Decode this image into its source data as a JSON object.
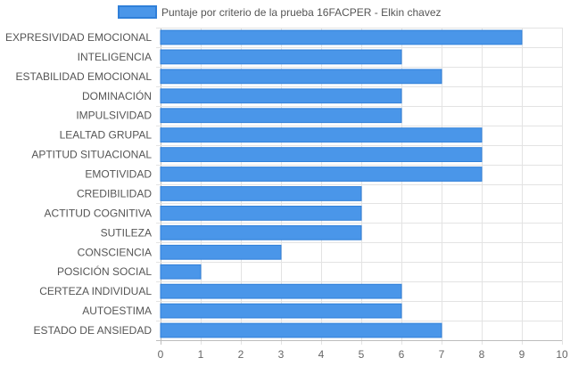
{
  "chart_data": {
    "type": "bar",
    "orientation": "horizontal",
    "legend": {
      "position": "top",
      "label": "Puntaje por criterio de la prueba 16FACPER - Elkin chavez"
    },
    "categories": [
      "EXPRESIVIDAD EMOCIONAL",
      "INTELIGENCIA",
      "ESTABILIDAD EMOCIONAL",
      "DOMINACIÓN",
      "IMPULSIVIDAD",
      "LEALTAD GRUPAL",
      "APTITUD SITUACIONAL",
      "EMOTIVIDAD",
      "CREDIBILIDAD",
      "ACTITUD COGNITIVA",
      "SUTILEZA",
      "CONSCIENCIA",
      "POSICIÓN SOCIAL",
      "CERTEZA INDIVIDUAL",
      "AUTOESTIMA",
      "ESTADO DE ANSIEDAD"
    ],
    "series": [
      {
        "name": "Puntaje por criterio de la prueba 16FACPER - Elkin chavez",
        "values": [
          9,
          6,
          7,
          6,
          6,
          8,
          8,
          8,
          5,
          5,
          5,
          3,
          1,
          6,
          6,
          7
        ],
        "color": "#4a96e9",
        "border_color": "#2f7fd9"
      }
    ],
    "xlim": [
      0,
      10
    ],
    "x_ticks": [
      "0",
      "1",
      "2",
      "3",
      "4",
      "5",
      "6",
      "7",
      "8",
      "9",
      "10"
    ],
    "grid": true
  }
}
